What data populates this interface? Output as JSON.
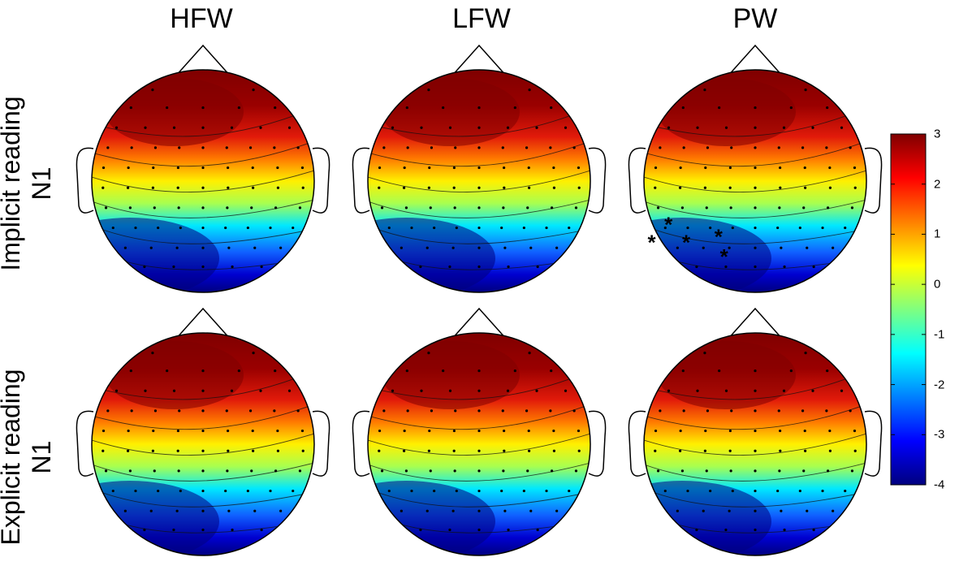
{
  "chart_data": {
    "type": "heatmap",
    "column_titles": [
      "HFW",
      "LFW",
      "PW"
    ],
    "row_labels": [
      {
        "line1": "Implicit reading",
        "line2": "N1"
      },
      {
        "line1": "Explicit reading",
        "line2": "N1"
      }
    ],
    "colorbar": {
      "min": -4,
      "max": 3,
      "ticks": [
        "3",
        "2",
        "1",
        "0",
        "-1",
        "-2",
        "-3",
        "-4"
      ]
    },
    "markers": {
      "symbol": "*",
      "panel": "Implicit reading N1 / PW",
      "count": 5
    }
  }
}
